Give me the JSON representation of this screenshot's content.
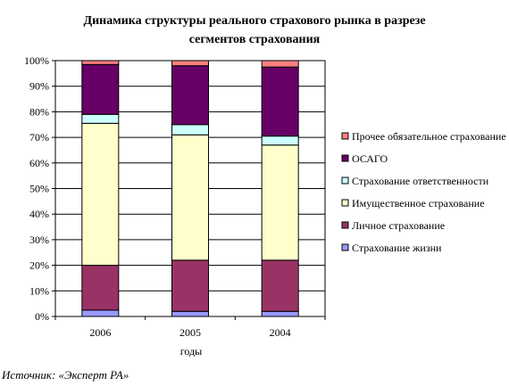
{
  "chart_data": {
    "type": "bar",
    "stacked": "percent",
    "title_lines": [
      "Динамика структуры реального страхового рынка в разрезе",
      "сегментов страхования"
    ],
    "xlabel": "годы",
    "ylabel": "",
    "categories": [
      "2006",
      "2005",
      "2004"
    ],
    "y_ticks": [
      "0%",
      "10%",
      "20%",
      "30%",
      "40%",
      "50%",
      "60%",
      "70%",
      "80%",
      "90%",
      "100%"
    ],
    "ylim": [
      0,
      100
    ],
    "legend_position": "right",
    "series": [
      {
        "name": "Страхование жизни",
        "color": "#9999ff",
        "values": [
          2.5,
          2,
          2
        ]
      },
      {
        "name": "Личное страхование",
        "color": "#993366",
        "values": [
          17.5,
          20,
          20
        ]
      },
      {
        "name": "Имущественное страхование",
        "color": "#ffffcc",
        "values": [
          55.5,
          49,
          45
        ]
      },
      {
        "name": "Страхование ответственности",
        "color": "#ccffff",
        "values": [
          3.5,
          4,
          3.5
        ]
      },
      {
        "name": "ОСАГО",
        "color": "#660066",
        "values": [
          19.5,
          23,
          27
        ]
      },
      {
        "name": "Прочее обязательное страхование",
        "color": "#ff8080",
        "values": [
          1.5,
          2,
          2.5
        ]
      }
    ]
  },
  "source_text": "Источник: «Эксперт РА»"
}
